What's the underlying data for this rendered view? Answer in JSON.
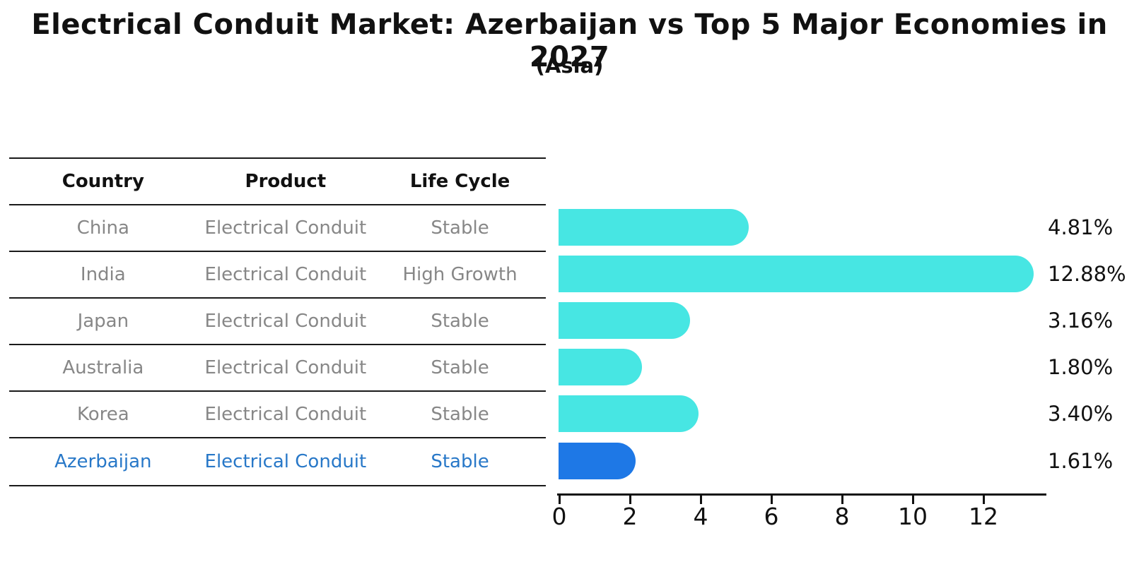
{
  "title": "Electrical Conduit Market: Azerbaijan vs Top 5 Major Economies in 2027",
  "subtitle": "(Asia)",
  "table": {
    "headers": [
      "Country",
      "Product",
      "Life Cycle"
    ],
    "rows": [
      {
        "country": "China",
        "product": "Electrical Conduit",
        "life_cycle": "Stable"
      },
      {
        "country": "India",
        "product": "Electrical Conduit",
        "life_cycle": "High Growth"
      },
      {
        "country": "Japan",
        "product": "Electrical Conduit",
        "life_cycle": "Stable"
      },
      {
        "country": "Australia",
        "product": "Electrical Conduit",
        "life_cycle": "Stable"
      },
      {
        "country": "Korea",
        "product": "Electrical Conduit",
        "life_cycle": "Stable"
      },
      {
        "country": "Azerbaijan",
        "product": "Electrical Conduit",
        "life_cycle": "Stable"
      }
    ]
  },
  "chart_data": {
    "type": "bar",
    "orientation": "horizontal",
    "title": "Electrical Conduit Market: Azerbaijan vs Top 5 Major Economies in 2027",
    "subtitle": "(Asia)",
    "categories": [
      "China",
      "India",
      "Japan",
      "Australia",
      "Korea",
      "Azerbaijan"
    ],
    "values": [
      4.81,
      12.88,
      3.16,
      1.8,
      3.4,
      1.61
    ],
    "value_labels": [
      "4.81%",
      "12.88%",
      "3.16%",
      "1.80%",
      "3.40%",
      "1.61%"
    ],
    "x_ticks": [
      "0",
      "2",
      "4",
      "6",
      "8",
      "10",
      "12"
    ],
    "xlim": [
      0,
      13.8
    ],
    "grid": false,
    "legend": "none",
    "bar_color": "#47E6E3",
    "highlight_color": "#1E78E6",
    "highlight_index": 5,
    "highlight_border_style": "dotted"
  },
  "colors": {
    "row_text": "#878787",
    "highlight_text": "#2878C8",
    "axis": "#111111"
  }
}
